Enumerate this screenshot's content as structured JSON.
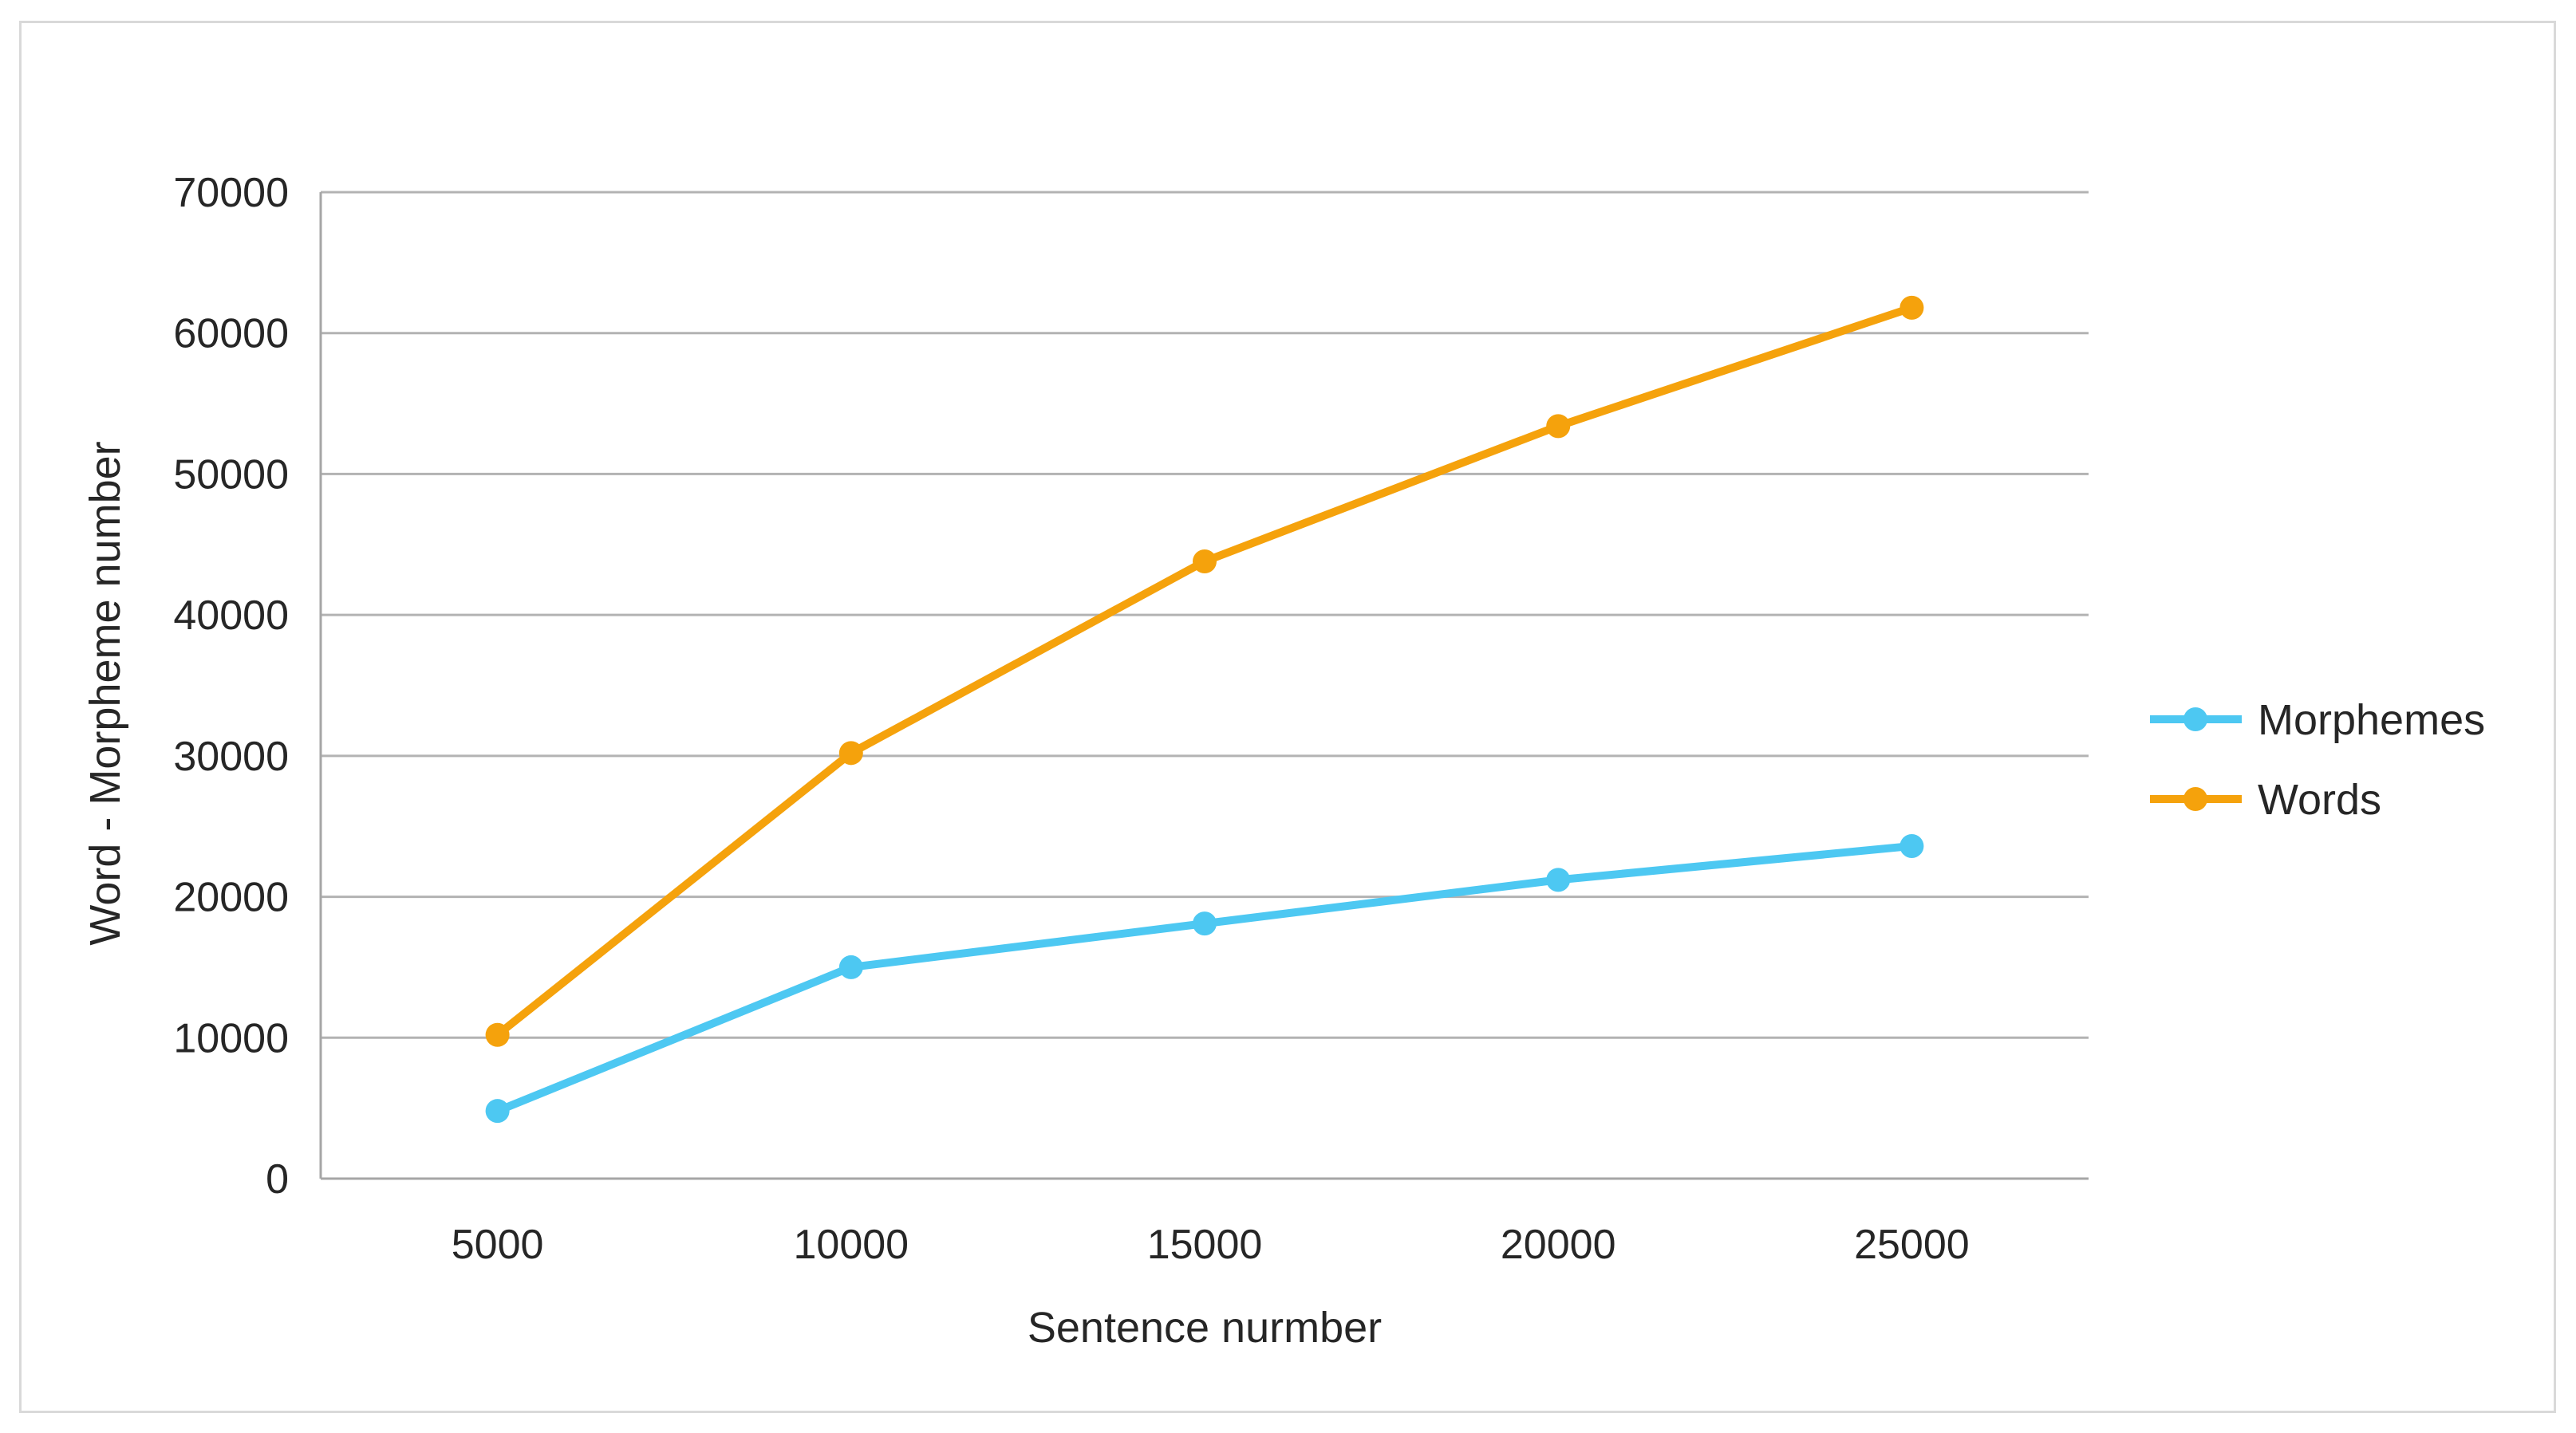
{
  "chart_data": {
    "type": "line",
    "title": "",
    "xlabel": "Sentence nurmber",
    "ylabel": "Word - Morpheme number",
    "x": [
      5000,
      10000,
      15000,
      20000,
      25000
    ],
    "x_tick_labels": [
      "5000",
      "10000",
      "15000",
      "20000",
      "25000"
    ],
    "y_ticks": [
      0,
      10000,
      20000,
      30000,
      40000,
      50000,
      60000,
      70000
    ],
    "y_tick_labels": [
      "0",
      "10000",
      "20000",
      "30000",
      "40000",
      "50000",
      "60000",
      "70000"
    ],
    "ylim": [
      0,
      70000
    ],
    "grid": "horizontal",
    "legend_position": "right",
    "series": [
      {
        "name": "Morphemes",
        "color": "#4dc8f2",
        "values": [
          4800,
          15000,
          18100,
          21200,
          23600
        ]
      },
      {
        "name": "Words",
        "color": "#f5a20c",
        "values": [
          10200,
          30200,
          43800,
          53400,
          61800
        ]
      }
    ]
  }
}
